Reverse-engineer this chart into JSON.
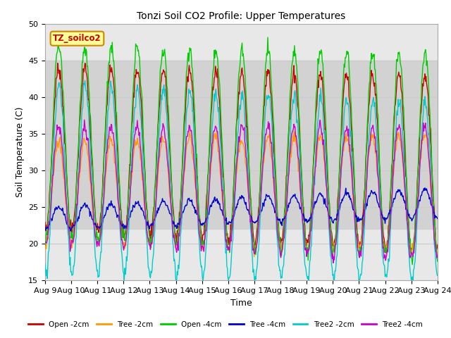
{
  "title": "Tonzi Soil CO2 Profile: Upper Temperatures",
  "xlabel": "Time",
  "ylabel": "Soil Temperature (C)",
  "ylim": [
    15,
    50
  ],
  "xlim_start": 0,
  "xlim_end": 15,
  "xtick_labels": [
    "Aug 9",
    "Aug 10",
    "Aug 11",
    "Aug 12",
    "Aug 13",
    "Aug 14",
    "Aug 15",
    "Aug 16",
    "Aug 17",
    "Aug 18",
    "Aug 19",
    "Aug 20",
    "Aug 21",
    "Aug 22",
    "Aug 23",
    "Aug 24"
  ],
  "label_box_text": "TZ_soilco2",
  "label_box_color": "#ffff99",
  "label_box_edge_color": "#cc8800",
  "label_box_text_color": "#cc0000",
  "series": [
    {
      "label": "Open -2cm",
      "color": "#cc0000"
    },
    {
      "label": "Tree -2cm",
      "color": "#ff9900"
    },
    {
      "label": "Open -4cm",
      "color": "#00cc00"
    },
    {
      "label": "Tree -4cm",
      "color": "#0000cc"
    },
    {
      "label": "Tree2 -2cm",
      "color": "#00cccc"
    },
    {
      "label": "Tree2 -4cm",
      "color": "#cc00cc"
    }
  ],
  "shade_ymin": 22,
  "shade_ymax": 45,
  "background_color": "#ffffff",
  "plot_bg_color": "#e8e8e8",
  "grid_color": "#cccccc"
}
